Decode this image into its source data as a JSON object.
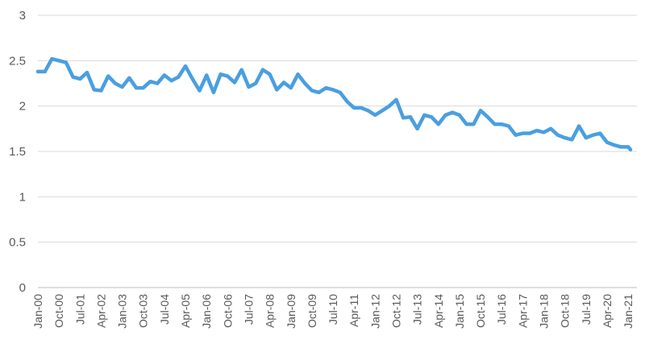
{
  "chart_data": {
    "type": "line",
    "title": "",
    "xlabel": "",
    "ylabel": "",
    "ylim": [
      0,
      3
    ],
    "y_ticks": [
      "0",
      "0.5",
      "1",
      "1.5",
      "2",
      "2.5",
      "3"
    ],
    "x_tick_labels": [
      "Jan-00",
      "Oct-00",
      "Jul-01",
      "Apr-02",
      "Jan-03",
      "Oct-03",
      "Jul-04",
      "Apr-05",
      "Jan-06",
      "Oct-06",
      "Jul-07",
      "Apr-08",
      "Jan-09",
      "Oct-09",
      "Jul-10",
      "Apr-11",
      "Jan-12",
      "Oct-12",
      "Jul-13",
      "Apr-14",
      "Jan-15",
      "Oct-15",
      "Jul-16",
      "Apr-17",
      "Jan-18",
      "Oct-18",
      "Jul-19",
      "Apr-20",
      "Jan-21"
    ],
    "grid": true,
    "legend": "none",
    "series_color": "#4a9fe0",
    "series": [
      {
        "x": [
          "2000-01",
          "2000-04",
          "2000-07",
          "2000-10",
          "2001-01",
          "2001-04",
          "2001-07",
          "2001-10",
          "2002-01",
          "2002-04",
          "2002-07",
          "2002-10",
          "2003-01",
          "2003-04",
          "2003-07",
          "2003-10",
          "2004-01",
          "2004-04",
          "2004-07",
          "2004-10",
          "2005-01",
          "2005-04",
          "2005-07",
          "2005-10",
          "2006-01",
          "2006-04",
          "2006-07",
          "2006-10",
          "2007-01",
          "2007-04",
          "2007-07",
          "2007-10",
          "2008-01",
          "2008-04",
          "2008-07",
          "2008-10",
          "2009-01",
          "2009-04",
          "2009-07",
          "2009-10",
          "2010-01",
          "2010-04",
          "2010-07",
          "2010-10",
          "2011-01",
          "2011-04",
          "2011-07",
          "2011-10",
          "2012-01",
          "2012-04",
          "2012-07",
          "2012-10",
          "2013-01",
          "2013-04",
          "2013-07",
          "2013-10",
          "2014-01",
          "2014-04",
          "2014-07",
          "2014-10",
          "2015-01",
          "2015-04",
          "2015-07",
          "2015-10",
          "2016-01",
          "2016-04",
          "2016-07",
          "2016-10",
          "2017-01",
          "2017-04",
          "2017-07",
          "2017-10",
          "2018-01",
          "2018-04",
          "2018-07",
          "2018-10",
          "2019-01",
          "2019-04",
          "2019-07",
          "2019-10",
          "2020-01",
          "2020-04",
          "2020-07",
          "2020-10",
          "2021-01",
          "2021-02"
        ],
        "values": [
          2.38,
          2.38,
          2.52,
          2.5,
          2.48,
          2.32,
          2.3,
          2.37,
          2.18,
          2.17,
          2.33,
          2.25,
          2.21,
          2.31,
          2.2,
          2.2,
          2.27,
          2.25,
          2.34,
          2.28,
          2.32,
          2.44,
          2.3,
          2.17,
          2.34,
          2.15,
          2.35,
          2.33,
          2.26,
          2.4,
          2.21,
          2.25,
          2.4,
          2.35,
          2.18,
          2.26,
          2.2,
          2.35,
          2.25,
          2.17,
          2.15,
          2.2,
          2.18,
          2.15,
          2.05,
          1.98,
          1.98,
          1.95,
          1.9,
          1.95,
          2.0,
          2.07,
          1.87,
          1.88,
          1.75,
          1.9,
          1.88,
          1.8,
          1.9,
          1.93,
          1.9,
          1.8,
          1.8,
          1.95,
          1.88,
          1.8,
          1.8,
          1.78,
          1.68,
          1.7,
          1.7,
          1.73,
          1.71,
          1.75,
          1.68,
          1.65,
          1.63,
          1.78,
          1.65,
          1.68,
          1.7,
          1.6,
          1.57,
          1.55,
          1.55,
          1.52
        ]
      }
    ]
  }
}
